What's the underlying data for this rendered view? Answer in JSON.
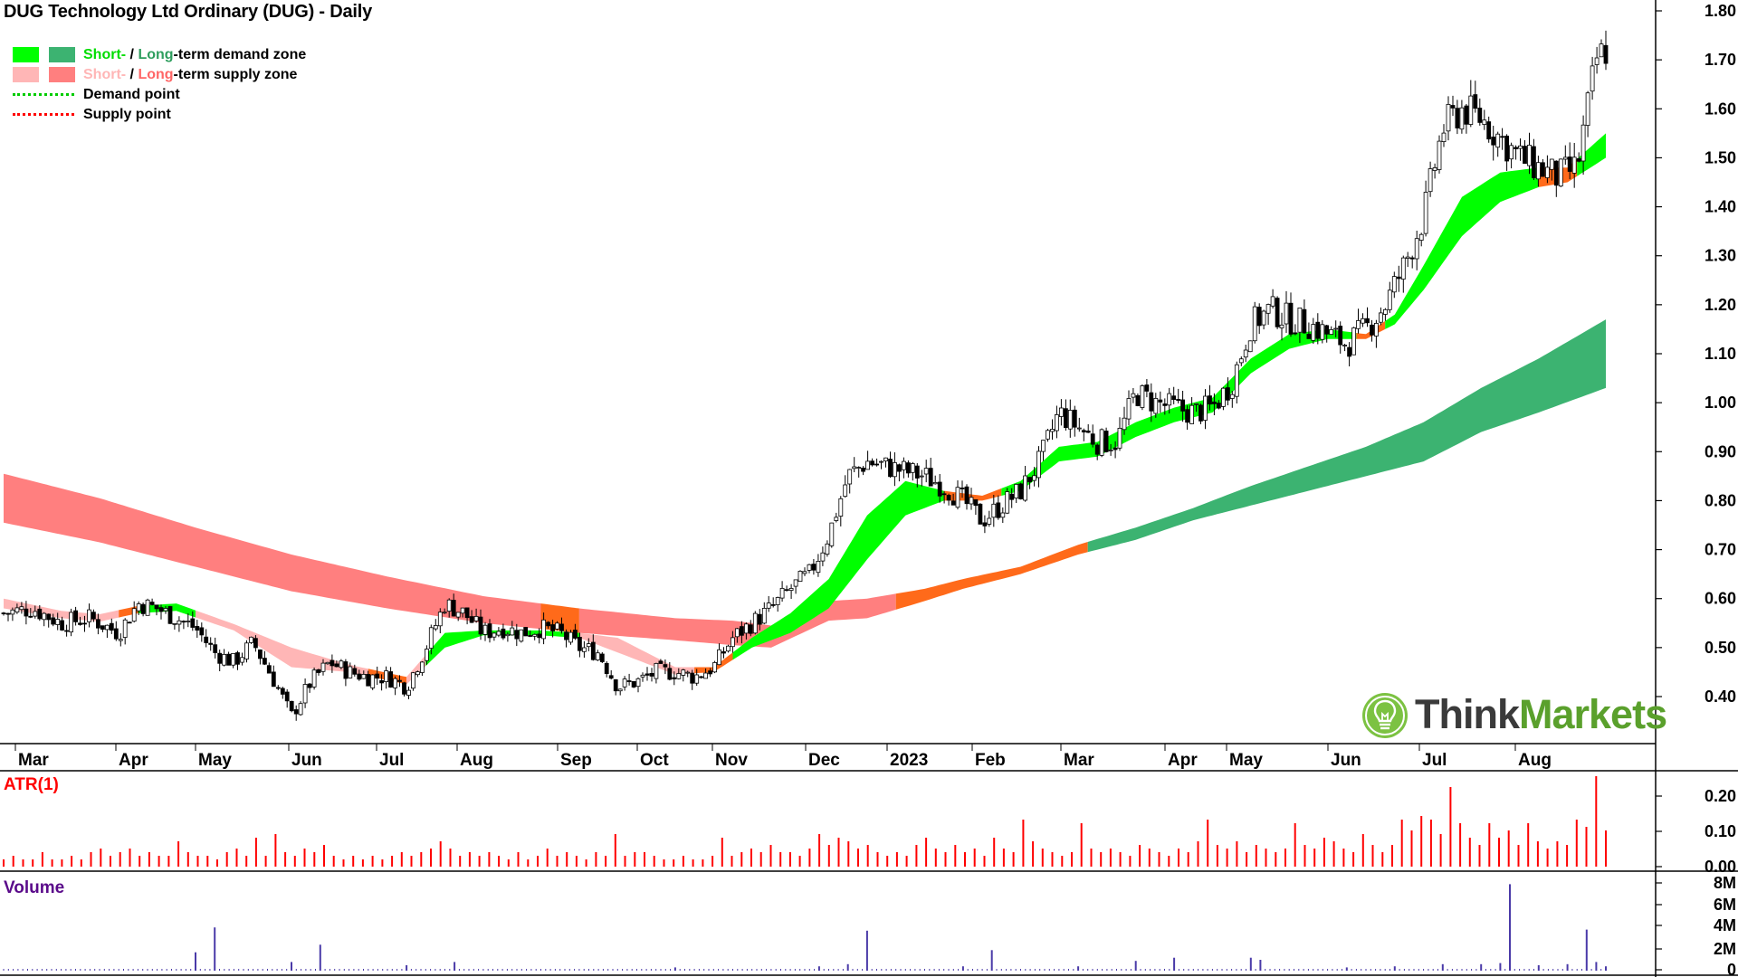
{
  "title": "DUG Technology Ltd Ordinary (DUG) - Daily",
  "legend": {
    "demand_short": "Short-",
    "demand_sep": " / ",
    "demand_long": "Long",
    "demand_suffix": "-term demand zone",
    "supply_short": "Short-",
    "supply_sep": " / ",
    "supply_long": "Long",
    "supply_suffix": "-term supply zone",
    "demand_point": "Demand point",
    "supply_point": "Supply point"
  },
  "colors": {
    "short_demand": "#00ff00",
    "long_demand": "#3cb371",
    "short_supply": "#ffb6b6",
    "long_supply": "#ff7f7f",
    "transition": "#ff6a1a",
    "atr": "#ff0000",
    "volume": "#4a3aa8",
    "atr_label": "#ff0000",
    "volume_label": "#5a0a8a",
    "demand_point": "#00cc00",
    "supply_point": "#ff0000"
  },
  "panels": {
    "atr_label": "ATR(1)",
    "volume_label": "Volume"
  },
  "logo": {
    "icon": "lightbulb-icon",
    "think": "Think",
    "markets": "Markets"
  },
  "chart_data": [
    {
      "type": "candlestick",
      "title": "DUG Technology Ltd Ordinary (DUG) - Daily",
      "x_labels": [
        "Mar",
        "Apr",
        "May",
        "Jun",
        "Jul",
        "Aug",
        "Sep",
        "Oct",
        "Nov",
        "Dec",
        "2023",
        "Feb",
        "Mar",
        "Apr",
        "May",
        "Jun",
        "Jul",
        "Aug"
      ],
      "y_ticks": [
        "1.80",
        "1.70",
        "1.60",
        "1.50",
        "1.40",
        "1.30",
        "1.20",
        "1.10",
        "1.00",
        "0.90",
        "0.80",
        "0.70",
        "0.60",
        "0.50",
        "0.40"
      ],
      "ylim": [
        0.31,
        1.82
      ],
      "price_path": [
        [
          0,
          0.57
        ],
        [
          3,
          0.58
        ],
        [
          6,
          0.55
        ],
        [
          9,
          0.56
        ],
        [
          12,
          0.53
        ],
        [
          14,
          0.59
        ],
        [
          16,
          0.58
        ],
        [
          18,
          0.56
        ],
        [
          20,
          0.54
        ],
        [
          22,
          0.49
        ],
        [
          24,
          0.47
        ],
        [
          26,
          0.51
        ],
        [
          28,
          0.44
        ],
        [
          30,
          0.36
        ],
        [
          32,
          0.43
        ],
        [
          34,
          0.47
        ],
        [
          36,
          0.45
        ],
        [
          38,
          0.44
        ],
        [
          40,
          0.44
        ],
        [
          42,
          0.42
        ],
        [
          44,
          0.5
        ],
        [
          46,
          0.59
        ],
        [
          48,
          0.57
        ],
        [
          50,
          0.53
        ],
        [
          52,
          0.54
        ],
        [
          54,
          0.53
        ],
        [
          56,
          0.54
        ],
        [
          58,
          0.53
        ],
        [
          60,
          0.5
        ],
        [
          62,
          0.49
        ],
        [
          64,
          0.42
        ],
        [
          66,
          0.43
        ],
        [
          68,
          0.45
        ],
        [
          70,
          0.45
        ],
        [
          72,
          0.44
        ],
        [
          74,
          0.46
        ],
        [
          76,
          0.52
        ],
        [
          78,
          0.55
        ],
        [
          80,
          0.58
        ],
        [
          82,
          0.62
        ],
        [
          84,
          0.65
        ],
        [
          86,
          0.73
        ],
        [
          88,
          0.85
        ],
        [
          90,
          0.88
        ],
        [
          92,
          0.87
        ],
        [
          94,
          0.86
        ],
        [
          96,
          0.85
        ],
        [
          98,
          0.83
        ],
        [
          100,
          0.8
        ],
        [
          102,
          0.76
        ],
        [
          104,
          0.79
        ],
        [
          106,
          0.82
        ],
        [
          108,
          0.88
        ],
        [
          110,
          0.98
        ],
        [
          112,
          0.95
        ],
        [
          114,
          0.92
        ],
        [
          116,
          0.92
        ],
        [
          118,
          1.02
        ],
        [
          120,
          1.0
        ],
        [
          122,
          0.99
        ],
        [
          124,
          0.98
        ],
        [
          126,
          0.99
        ],
        [
          128,
          1.04
        ],
        [
          130,
          1.16
        ],
        [
          132,
          1.19
        ],
        [
          134,
          1.17
        ],
        [
          136,
          1.16
        ],
        [
          138,
          1.14
        ],
        [
          140,
          1.12
        ],
        [
          142,
          1.15
        ],
        [
          144,
          1.2
        ],
        [
          146,
          1.28
        ],
        [
          148,
          1.38
        ],
        [
          150,
          1.56
        ],
        [
          152,
          1.6
        ],
        [
          154,
          1.58
        ],
        [
          156,
          1.54
        ],
        [
          158,
          1.5
        ],
        [
          160,
          1.48
        ],
        [
          162,
          1.46
        ],
        [
          164,
          1.48
        ],
        [
          166,
          1.7
        ],
        [
          167,
          1.72
        ]
      ],
      "short_term_zone": [
        [
          0,
          0.58,
          0.6
        ],
        [
          6,
          0.56,
          0.575
        ],
        [
          10,
          0.553,
          0.568
        ],
        [
          14,
          0.57,
          0.585
        ],
        [
          18,
          0.575,
          0.59
        ],
        [
          24,
          0.535,
          0.548
        ],
        [
          30,
          0.46,
          0.5
        ],
        [
          36,
          0.45,
          0.465
        ],
        [
          42,
          0.425,
          0.44
        ],
        [
          46,
          0.5,
          0.53
        ],
        [
          50,
          0.525,
          0.535
        ],
        [
          56,
          0.525,
          0.535
        ],
        [
          60,
          0.52,
          0.53
        ],
        [
          64,
          0.49,
          0.52
        ],
        [
          70,
          0.445,
          0.46
        ],
        [
          74,
          0.45,
          0.46
        ],
        [
          78,
          0.5,
          0.52
        ],
        [
          82,
          0.53,
          0.57
        ],
        [
          86,
          0.58,
          0.64
        ],
        [
          90,
          0.68,
          0.77
        ],
        [
          94,
          0.77,
          0.84
        ],
        [
          98,
          0.8,
          0.82
        ],
        [
          102,
          0.8,
          0.81
        ],
        [
          106,
          0.82,
          0.84
        ],
        [
          110,
          0.88,
          0.91
        ],
        [
          114,
          0.89,
          0.92
        ],
        [
          118,
          0.93,
          0.96
        ],
        [
          122,
          0.96,
          0.99
        ],
        [
          126,
          0.98,
          1.01
        ],
        [
          130,
          1.06,
          1.09
        ],
        [
          134,
          1.11,
          1.14
        ],
        [
          138,
          1.13,
          1.15
        ],
        [
          142,
          1.13,
          1.14
        ],
        [
          145,
          1.16,
          1.18
        ],
        [
          148,
          1.23,
          1.28
        ],
        [
          152,
          1.34,
          1.42
        ],
        [
          156,
          1.41,
          1.47
        ],
        [
          160,
          1.44,
          1.48
        ],
        [
          163,
          1.45,
          1.48
        ],
        [
          167,
          1.5,
          1.55
        ]
      ],
      "long_term_zone": [
        [
          0,
          0.755,
          0.855
        ],
        [
          10,
          0.715,
          0.805
        ],
        [
          20,
          0.665,
          0.745
        ],
        [
          30,
          0.615,
          0.69
        ],
        [
          40,
          0.58,
          0.645
        ],
        [
          50,
          0.55,
          0.605
        ],
        [
          60,
          0.53,
          0.58
        ],
        [
          70,
          0.515,
          0.56
        ],
        [
          76,
          0.505,
          0.555
        ],
        [
          80,
          0.5,
          0.545
        ],
        [
          86,
          0.555,
          0.595
        ],
        [
          90,
          0.56,
          0.6
        ],
        [
          96,
          0.595,
          0.62
        ],
        [
          100,
          0.62,
          0.64
        ],
        [
          106,
          0.65,
          0.665
        ],
        [
          112,
          0.69,
          0.71
        ],
        [
          118,
          0.72,
          0.745
        ],
        [
          124,
          0.76,
          0.785
        ],
        [
          130,
          0.79,
          0.83
        ],
        [
          136,
          0.82,
          0.87
        ],
        [
          142,
          0.85,
          0.91
        ],
        [
          148,
          0.88,
          0.96
        ],
        [
          154,
          0.94,
          1.03
        ],
        [
          160,
          0.98,
          1.09
        ],
        [
          167,
          1.03,
          1.17
        ]
      ]
    },
    {
      "type": "bar",
      "title": "ATR(1)",
      "y_ticks": [
        "0.20",
        "0.10",
        "0.00"
      ],
      "ylim": [
        0,
        0.24
      ],
      "values": [
        0.02,
        0.03,
        0.02,
        0.02,
        0.04,
        0.02,
        0.02,
        0.03,
        0.02,
        0.04,
        0.05,
        0.03,
        0.04,
        0.05,
        0.03,
        0.04,
        0.03,
        0.03,
        0.07,
        0.04,
        0.03,
        0.03,
        0.02,
        0.04,
        0.05,
        0.03,
        0.08,
        0.03,
        0.09,
        0.04,
        0.03,
        0.05,
        0.04,
        0.06,
        0.03,
        0.02,
        0.03,
        0.02,
        0.03,
        0.02,
        0.03,
        0.04,
        0.03,
        0.04,
        0.05,
        0.07,
        0.05,
        0.03,
        0.04,
        0.03,
        0.04,
        0.03,
        0.02,
        0.04,
        0.02,
        0.03,
        0.05,
        0.03,
        0.04,
        0.03,
        0.02,
        0.04,
        0.03,
        0.09,
        0.03,
        0.04,
        0.04,
        0.03,
        0.02,
        0.02,
        0.03,
        0.02,
        0.02,
        0.03,
        0.08,
        0.03,
        0.04,
        0.05,
        0.04,
        0.06,
        0.04,
        0.04,
        0.03,
        0.05,
        0.09,
        0.06,
        0.08,
        0.07,
        0.05,
        0.06,
        0.04,
        0.03,
        0.04,
        0.03,
        0.06,
        0.08,
        0.05,
        0.04,
        0.06,
        0.04,
        0.05,
        0.03,
        0.08,
        0.05,
        0.04,
        0.13,
        0.07,
        0.05,
        0.04,
        0.03,
        0.04,
        0.12,
        0.05,
        0.04,
        0.05,
        0.04,
        0.03,
        0.06,
        0.05,
        0.04,
        0.03,
        0.05,
        0.04,
        0.07,
        0.13,
        0.06,
        0.05,
        0.07,
        0.04,
        0.06,
        0.05,
        0.04,
        0.05,
        0.12,
        0.06,
        0.05,
        0.08,
        0.07,
        0.05,
        0.04,
        0.09,
        0.06,
        0.04,
        0.06,
        0.13,
        0.1,
        0.14,
        0.13,
        0.09,
        0.22,
        0.12,
        0.08,
        0.06,
        0.12,
        0.08,
        0.1,
        0.06,
        0.12,
        0.07,
        0.05,
        0.07,
        0.06,
        0.13,
        0.11,
        0.25,
        0.1
      ]
    },
    {
      "type": "bar",
      "title": "Volume",
      "y_ticks": [
        "8M",
        "6M",
        "4M",
        "2M",
        "0"
      ],
      "ylim": [
        0,
        8500000
      ],
      "spikes": [
        [
          20,
          1.7
        ],
        [
          22,
          4.0
        ],
        [
          30,
          0.8
        ],
        [
          33,
          2.4
        ],
        [
          42,
          0.5
        ],
        [
          47,
          0.8
        ],
        [
          70,
          0.3
        ],
        [
          85,
          0.4
        ],
        [
          88,
          0.6
        ],
        [
          90,
          3.7
        ],
        [
          100,
          0.4
        ],
        [
          103,
          1.9
        ],
        [
          112,
          0.4
        ],
        [
          118,
          0.9
        ],
        [
          122,
          1.2
        ],
        [
          130,
          1.2
        ],
        [
          131,
          1.0
        ],
        [
          140,
          0.3
        ],
        [
          145,
          0.4
        ],
        [
          150,
          0.6
        ],
        [
          154,
          0.6
        ],
        [
          156,
          0.7
        ],
        [
          157,
          8.0
        ],
        [
          160,
          0.5
        ],
        [
          163,
          0.6
        ],
        [
          165,
          3.8
        ],
        [
          166,
          0.8
        ],
        [
          167,
          0.4
        ]
      ]
    }
  ]
}
